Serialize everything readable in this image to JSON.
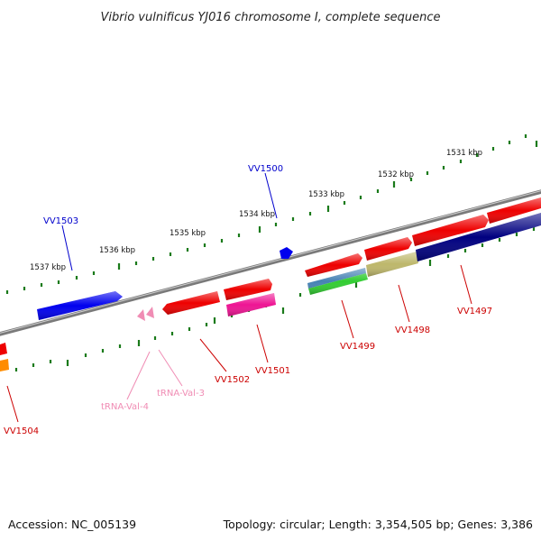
{
  "title": "Vibrio vulnificus YJ016 chromosome I, complete sequence",
  "footer": {
    "accession": "Accession: NC_005139",
    "topology": "Topology: circular; Length: 3,354,505 bp; Genes: 3,386"
  },
  "colors": {
    "backbone": "#7a7a7a",
    "tick": "#1a7a1a",
    "blue_label": "#0000cc",
    "red_label": "#cc0000",
    "pink_label": "#f08cb4"
  },
  "kbp_labels": [
    "1537 kbp",
    "1536 kbp",
    "1535 kbp",
    "1534 kbp",
    "1533 kbp",
    "1532 kbp",
    "1531 kbp"
  ],
  "genes": [
    {
      "name": "VV1503",
      "strand": "forward",
      "color": "#0000ee"
    },
    {
      "name": "VV1500",
      "strand": "forward",
      "color": "#0000ee"
    },
    {
      "name": "VV1502",
      "strand": "reverse",
      "color": "#ee0000"
    },
    {
      "name": "VV1501",
      "strand": "forward",
      "color": "#ee0000"
    },
    {
      "name": "VV1501",
      "strand": "forward",
      "color": "#ee1493"
    },
    {
      "name": "VV1499",
      "strand": "reverse",
      "color": "#ee0000"
    },
    {
      "name": "VV1498",
      "strand": "forward",
      "color": "#ee0000"
    },
    {
      "name": "VV1497",
      "strand": "forward",
      "color": "#ee0000"
    },
    {
      "name": "VV1497",
      "strand": "forward",
      "color": "#000080"
    },
    {
      "name": "VV1498",
      "strand": "forward",
      "color": "#bdb76b"
    },
    {
      "name": "VV1499",
      "strand": "forward",
      "color": "#4682b4"
    },
    {
      "name": "VV1499",
      "strand": "forward",
      "color": "#32cd32"
    },
    {
      "name": "VV1504",
      "strand": "forward",
      "color": "#ee0000"
    },
    {
      "name": "VV1504",
      "strand": "forward",
      "color": "#ff8c00"
    }
  ],
  "trnas": [
    {
      "name": "tRNA-Val-4",
      "color": "#f08cb4"
    },
    {
      "name": "tRNA-Val-3",
      "color": "#f08cb4"
    }
  ],
  "labels": {
    "vv1503": "VV1503",
    "vv1500": "VV1500",
    "vv1502": "VV1502",
    "vv1501": "VV1501",
    "vv1499": "VV1499",
    "vv1498": "VV1498",
    "vv1497": "VV1497",
    "vv1504": "VV1504",
    "trna4": "tRNA-Val-4",
    "trna3": "tRNA-Val-3"
  }
}
